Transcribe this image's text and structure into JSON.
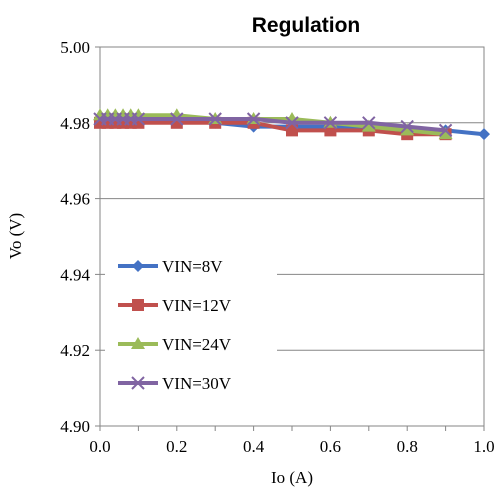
{
  "chart_data": {
    "type": "line",
    "title": "Regulation",
    "xlabel": "Io (A)",
    "ylabel": "Vo (V)",
    "xlim": [
      0.0,
      1.0
    ],
    "ylim": [
      4.9,
      5.0
    ],
    "xticks": [
      "0.0",
      "0.2",
      "0.4",
      "0.6",
      "0.8",
      "1.0"
    ],
    "yticks": [
      "4.90",
      "4.92",
      "4.94",
      "4.96",
      "4.98",
      "5.00"
    ],
    "grid": "horizontal",
    "legend_position": "bottom-left",
    "series": [
      {
        "name": "VIN=8V",
        "color": "#4472C4",
        "marker": "diamond",
        "x": [
          0.0,
          0.02,
          0.04,
          0.06,
          0.08,
          0.1,
          0.2,
          0.3,
          0.4,
          0.5,
          0.6,
          0.7,
          0.8,
          0.9,
          1.0
        ],
        "y": [
          4.981,
          4.981,
          4.981,
          4.981,
          4.981,
          4.981,
          4.981,
          4.98,
          4.979,
          4.979,
          4.979,
          4.979,
          4.978,
          4.978,
          4.977
        ]
      },
      {
        "name": "VIN=12V",
        "color": "#C0504D",
        "marker": "square",
        "x": [
          0.0,
          0.02,
          0.04,
          0.06,
          0.08,
          0.1,
          0.2,
          0.3,
          0.4,
          0.5,
          0.6,
          0.7,
          0.8,
          0.9
        ],
        "y": [
          4.98,
          4.98,
          4.98,
          4.98,
          4.98,
          4.98,
          4.98,
          4.98,
          4.98,
          4.978,
          4.978,
          4.978,
          4.977,
          4.977
        ]
      },
      {
        "name": "VIN=24V",
        "color": "#9BBB59",
        "marker": "triangle",
        "x": [
          0.0,
          0.02,
          0.04,
          0.06,
          0.08,
          0.1,
          0.2,
          0.3,
          0.4,
          0.5,
          0.6,
          0.7,
          0.8,
          0.9
        ],
        "y": [
          4.982,
          4.982,
          4.982,
          4.982,
          4.982,
          4.982,
          4.982,
          4.981,
          4.981,
          4.981,
          4.98,
          4.979,
          4.978,
          4.977
        ]
      },
      {
        "name": "VIN=30V",
        "color": "#8064A2",
        "marker": "x",
        "x": [
          0.0,
          0.02,
          0.04,
          0.06,
          0.08,
          0.1,
          0.2,
          0.3,
          0.4,
          0.5,
          0.6,
          0.7,
          0.8,
          0.9
        ],
        "y": [
          4.981,
          4.981,
          4.981,
          4.981,
          4.981,
          4.981,
          4.981,
          4.981,
          4.981,
          4.98,
          4.98,
          4.98,
          4.979,
          4.978
        ]
      }
    ]
  }
}
